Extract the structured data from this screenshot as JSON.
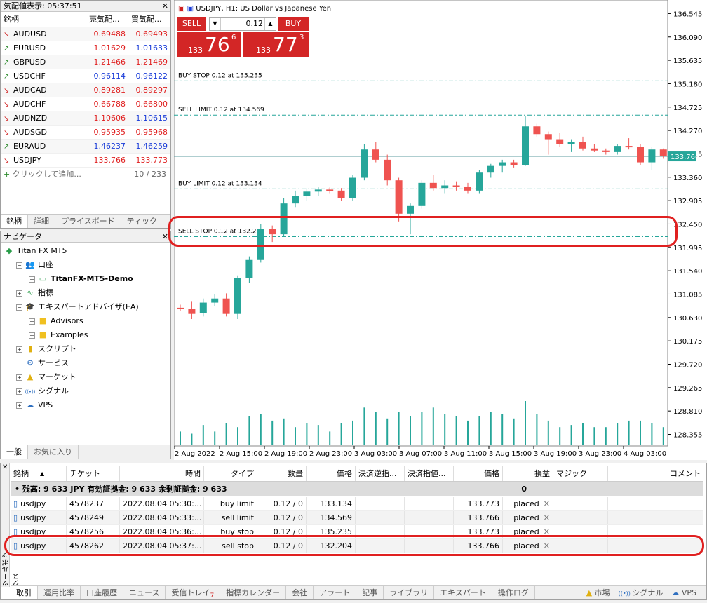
{
  "market_watch": {
    "title": "気配値表示: 05:37:51",
    "headers": [
      "銘柄",
      "売気配...",
      "買気配..."
    ],
    "rows": [
      {
        "symbol": "AUDUSD",
        "dir": "dn",
        "bid": "0.69488",
        "ask": "0.69493",
        "bid_color": "red",
        "ask_color": "red"
      },
      {
        "symbol": "EURUSD",
        "dir": "up",
        "bid": "1.01629",
        "ask": "1.01633",
        "bid_color": "red",
        "ask_color": "blue"
      },
      {
        "symbol": "GBPUSD",
        "dir": "up",
        "bid": "1.21466",
        "ask": "1.21469",
        "bid_color": "red",
        "ask_color": "red"
      },
      {
        "symbol": "USDCHF",
        "dir": "up",
        "bid": "0.96114",
        "ask": "0.96122",
        "bid_color": "blue",
        "ask_color": "blue"
      },
      {
        "symbol": "AUDCAD",
        "dir": "dn",
        "bid": "0.89281",
        "ask": "0.89297",
        "bid_color": "red",
        "ask_color": "red"
      },
      {
        "symbol": "AUDCHF",
        "dir": "dn",
        "bid": "0.66788",
        "ask": "0.66800",
        "bid_color": "red",
        "ask_color": "red"
      },
      {
        "symbol": "AUDNZD",
        "dir": "dn",
        "bid": "1.10606",
        "ask": "1.10615",
        "bid_color": "red",
        "ask_color": "blue"
      },
      {
        "symbol": "AUDSGD",
        "dir": "dn",
        "bid": "0.95935",
        "ask": "0.95968",
        "bid_color": "red",
        "ask_color": "red"
      },
      {
        "symbol": "EURAUD",
        "dir": "up",
        "bid": "1.46237",
        "ask": "1.46259",
        "bid_color": "blue",
        "ask_color": "blue"
      },
      {
        "symbol": "USDJPY",
        "dir": "dn",
        "bid": "133.766",
        "ask": "133.773",
        "bid_color": "red",
        "ask_color": "red"
      }
    ],
    "add_label": "クリックして追加...",
    "count": "10 / 233",
    "tabs": [
      "銘柄",
      "詳細",
      "プライスボード",
      "ティック"
    ]
  },
  "navigator": {
    "title": "ナビゲータ",
    "items": [
      {
        "label": "Titan FX MT5",
        "level": 0,
        "icon": "mt5-logo-icon",
        "pm": ""
      },
      {
        "label": "口座",
        "level": 1,
        "icon": "accounts-icon",
        "pm": "−"
      },
      {
        "label": "TitanFX-MT5-Demo",
        "level": 2,
        "icon": "account-demo-icon",
        "pm": "+",
        "bold": true
      },
      {
        "label": "指標",
        "level": 1,
        "icon": "indicator-icon",
        "pm": "+"
      },
      {
        "label": "エキスパートアドバイザ(EA)",
        "level": 1,
        "icon": "expert-hat-icon",
        "pm": "−"
      },
      {
        "label": "Advisors",
        "level": 2,
        "icon": "folder-icon",
        "pm": "+"
      },
      {
        "label": "Examples",
        "level": 2,
        "icon": "folder-icon",
        "pm": "+"
      },
      {
        "label": "スクリプト",
        "level": 1,
        "icon": "script-icon",
        "pm": "+"
      },
      {
        "label": "サービス",
        "level": 1,
        "icon": "gear-icon",
        "pm": ""
      },
      {
        "label": "マーケット",
        "level": 1,
        "icon": "market-bag-icon",
        "pm": "+"
      },
      {
        "label": "シグナル",
        "level": 1,
        "icon": "signal-icon",
        "pm": "+"
      },
      {
        "label": "VPS",
        "level": 1,
        "icon": "cloud-icon",
        "pm": "+"
      }
    ],
    "tabs": [
      "一般",
      "お気に入り"
    ]
  },
  "chart": {
    "title": "USDJPY, H1:  US Dollar vs Japanese Yen",
    "sell_label": "SELL",
    "buy_label": "BUY",
    "volume": "0.12",
    "sell_price": {
      "prefix": "133",
      "big": "76",
      "sup": "6"
    },
    "buy_price": {
      "prefix": "133",
      "big": "77",
      "sup": "3"
    },
    "current_price": "133.766",
    "order_lines": [
      {
        "label": "BUY STOP 0.12 at 135.235",
        "price": 135.235
      },
      {
        "label": "SELL LIMIT 0.12 at 134.569",
        "price": 134.569
      },
      {
        "label": "BUY LIMIT 0.12 at 133.134",
        "price": 133.134
      },
      {
        "label": "SELL STOP 0.12 at 132.204",
        "price": 132.204
      }
    ],
    "colors": {
      "up": "#26a69a",
      "down": "#ef5350",
      "order_line": "#26a69a"
    }
  },
  "chart_data": {
    "type": "candlestick",
    "ylim": [
      128.13,
      136.81
    ],
    "y_ticks": [
      "136.545",
      "136.090",
      "135.635",
      "135.180",
      "134.725",
      "134.270",
      "133.815",
      "133.360",
      "132.905",
      "132.450",
      "131.995",
      "131.540",
      "131.085",
      "130.630",
      "130.175",
      "129.720",
      "129.265",
      "128.810",
      "128.355"
    ],
    "x_ticks": [
      "2 Aug 2022",
      "2 Aug 15:00",
      "2 Aug 19:00",
      "2 Aug 23:00",
      "3 Aug 03:00",
      "3 Aug 07:00",
      "3 Aug 11:00",
      "3 Aug 15:00",
      "3 Aug 19:00",
      "3 Aug 23:00",
      "4 Aug 03:00"
    ],
    "candles": [
      [
        130.82,
        130.88,
        130.75,
        130.8
      ],
      [
        130.8,
        130.95,
        130.6,
        130.7
      ],
      [
        130.72,
        131.0,
        130.65,
        130.92
      ],
      [
        130.92,
        131.08,
        130.85,
        131.0
      ],
      [
        131.0,
        131.1,
        130.65,
        130.7
      ],
      [
        130.7,
        131.45,
        130.6,
        131.4
      ],
      [
        131.4,
        131.82,
        131.3,
        131.75
      ],
      [
        131.75,
        132.45,
        131.7,
        132.35
      ],
      [
        132.35,
        132.42,
        132.1,
        132.25
      ],
      [
        132.25,
        132.95,
        132.2,
        132.85
      ],
      [
        132.85,
        133.1,
        132.78,
        133.0
      ],
      [
        133.0,
        133.15,
        132.9,
        133.08
      ],
      [
        133.08,
        133.18,
        133.0,
        133.12
      ],
      [
        133.12,
        133.16,
        133.05,
        133.1
      ],
      [
        133.1,
        133.15,
        132.9,
        132.95
      ],
      [
        132.95,
        133.4,
        132.9,
        133.35
      ],
      [
        133.35,
        134.0,
        133.3,
        133.9
      ],
      [
        133.9,
        134.05,
        133.65,
        133.7
      ],
      [
        133.7,
        133.8,
        133.2,
        133.3
      ],
      [
        133.3,
        133.35,
        132.5,
        132.65
      ],
      [
        132.65,
        132.85,
        132.25,
        132.8
      ],
      [
        132.8,
        133.3,
        132.75,
        133.25
      ],
      [
        133.25,
        133.4,
        133.1,
        133.15
      ],
      [
        133.15,
        133.3,
        133.05,
        133.2
      ],
      [
        133.2,
        133.28,
        133.1,
        133.18
      ],
      [
        133.18,
        133.25,
        133.05,
        133.1
      ],
      [
        133.1,
        133.5,
        133.05,
        133.45
      ],
      [
        133.45,
        133.62,
        133.35,
        133.58
      ],
      [
        133.58,
        133.7,
        133.45,
        133.65
      ],
      [
        133.65,
        133.7,
        133.55,
        133.6
      ],
      [
        133.6,
        134.55,
        133.58,
        134.35
      ],
      [
        134.35,
        134.4,
        134.15,
        134.2
      ],
      [
        134.2,
        134.25,
        133.8,
        134.1
      ],
      [
        134.1,
        134.22,
        133.95,
        134.0
      ],
      [
        134.0,
        134.1,
        133.85,
        134.05
      ],
      [
        134.05,
        134.15,
        133.88,
        133.92
      ],
      [
        133.92,
        134.0,
        133.85,
        133.88
      ],
      [
        133.88,
        133.92,
        133.8,
        133.85
      ],
      [
        133.85,
        134.0,
        133.8,
        133.97
      ],
      [
        133.97,
        134.12,
        133.9,
        133.95
      ],
      [
        133.95,
        134.0,
        133.6,
        133.65
      ],
      [
        133.65,
        133.95,
        133.5,
        133.9
      ],
      [
        133.9,
        133.92,
        133.72,
        133.77
      ]
    ],
    "volumes": [
      0.3,
      0.25,
      0.45,
      0.3,
      0.5,
      0.4,
      0.65,
      0.7,
      0.55,
      0.6,
      0.4,
      0.5,
      0.45,
      0.3,
      0.5,
      0.55,
      0.85,
      0.75,
      0.6,
      0.75,
      0.65,
      0.75,
      0.85,
      0.7,
      0.65,
      0.55,
      0.65,
      0.75,
      0.7,
      0.6,
      1.0,
      0.7,
      0.55,
      0.4,
      0.45,
      0.5,
      0.4,
      0.4,
      0.5,
      0.55,
      0.55,
      0.5,
      0.4
    ]
  },
  "toolbox": {
    "side_label": "ツールボックス",
    "columns": [
      "銘柄",
      "チケット",
      "時間",
      "タイプ",
      "数量",
      "価格",
      "決済逆指...",
      "決済指値...",
      "価格",
      "損益",
      "マジック",
      "コメント"
    ],
    "balance_text": "残高: 9 633 JPY  有効証拠金: 9 633  余剰証拠金: 9 633",
    "balance_profit": "0",
    "rows": [
      {
        "symbol": "usdjpy",
        "ticket": "4578237",
        "time": "2022.08.04 05:30:...",
        "type": "buy limit",
        "volume": "0.12 / 0",
        "price": "133.134",
        "cur": "133.773",
        "state": "placed"
      },
      {
        "symbol": "usdjpy",
        "ticket": "4578249",
        "time": "2022.08.04 05:33:...",
        "type": "sell limit",
        "volume": "0.12 / 0",
        "price": "134.569",
        "cur": "133.766",
        "state": "placed"
      },
      {
        "symbol": "usdjpy",
        "ticket": "4578256",
        "time": "2022.08.04 05:36:...",
        "type": "buy stop",
        "volume": "0.12 / 0",
        "price": "135.235",
        "cur": "133.773",
        "state": "placed"
      },
      {
        "symbol": "usdjpy",
        "ticket": "4578262",
        "time": "2022.08.04 05:37:...",
        "type": "sell stop",
        "volume": "0.12 / 0",
        "price": "132.204",
        "cur": "133.766",
        "state": "placed"
      }
    ],
    "tabs": [
      "取引",
      "運用比率",
      "口座履歴",
      "ニュース",
      "受信トレイ",
      "指標カレンダー",
      "会社",
      "アラート",
      "記事",
      "ライブラリ",
      "エキスパート",
      "操作ログ"
    ],
    "inbox_count": "7",
    "status": [
      {
        "label": "市場",
        "icon": "market-bag-icon"
      },
      {
        "label": "シグナル",
        "icon": "signal-icon"
      },
      {
        "label": "VPS",
        "icon": "cloud-icon"
      }
    ]
  }
}
